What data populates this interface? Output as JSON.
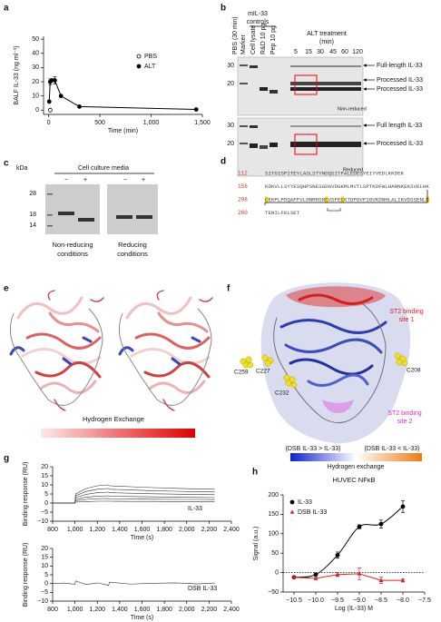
{
  "panel_labels": [
    "a",
    "b",
    "c",
    "d",
    "e",
    "f",
    "g",
    "h"
  ],
  "chart_data": [
    {
      "type": "line",
      "xlabel": "Time (min)",
      "ylabel": "BALF IL-33 (ng ml⁻¹)",
      "xlim": [
        -50,
        1500
      ],
      "ylim": [
        -3,
        52
      ],
      "xticks": [
        0,
        500,
        {
          "value": 1000,
          "label": "1,000"
        },
        {
          "value": 1500,
          "label": "1,500"
        }
      ],
      "yticks": [
        0,
        10,
        20,
        30,
        40,
        50
      ],
      "legend": "upper right",
      "series": [
        {
          "name": "PBS",
          "marker": "open-circle",
          "color": "#000000",
          "line": false,
          "x": [
            15
          ],
          "values": [
            0
          ]
        },
        {
          "name": "ALT",
          "marker": "circle",
          "color": "#000000",
          "line": true,
          "x": [
            5,
            15,
            30,
            60,
            120,
            300,
            1440
          ],
          "values": [
            6,
            20,
            21,
            21,
            10,
            2.5,
            0.5
          ],
          "errors": [
            null,
            2,
            null,
            2.5,
            null,
            null,
            null
          ]
        }
      ]
    },
    {
      "type": "line",
      "xlabel": "Time (s)",
      "ylabel": "Binding response (RU)",
      "annotation": "IL-33",
      "xlim": [
        800,
        2400
      ],
      "ylim": [
        -10,
        20
      ],
      "xticks": [
        800,
        {
          "value": 1000,
          "label": "1,000"
        },
        {
          "value": 1200,
          "label": "1,200"
        },
        {
          "value": 1400,
          "label": "1,400"
        },
        {
          "value": 1600,
          "label": "1,600"
        },
        {
          "value": 1800,
          "label": "1,800"
        },
        {
          "value": 2000,
          "label": "2,000"
        },
        {
          "value": 2200,
          "label": "2,200"
        },
        {
          "value": 2400,
          "label": "2,400"
        }
      ],
      "yticks": [
        {
          "value": -10,
          "label": "−10"
        },
        {
          "value": -5,
          "label": "−5"
        },
        0,
        5,
        10,
        15,
        20
      ],
      "x": [
        800,
        900,
        1000,
        1005,
        1100,
        1200,
        1300,
        1310,
        1500,
        1700,
        1900,
        2100,
        2250
      ],
      "series": [
        {
          "color": "#333333",
          "line": true,
          "values": [
            0,
            0,
            0,
            5,
            8,
            9.5,
            10,
            9.5,
            9,
            8.5,
            8.1,
            7.8,
            7.6
          ]
        },
        {
          "color": "#333333",
          "line": true,
          "values": [
            0,
            0,
            0,
            4,
            6.4,
            7.6,
            8,
            7.6,
            7.2,
            6.8,
            6.5,
            6.2,
            6.1
          ]
        },
        {
          "color": "#333333",
          "line": true,
          "values": [
            0,
            0,
            0,
            3,
            4.8,
            5.7,
            6,
            5.7,
            5.4,
            5.1,
            4.9,
            4.7,
            4.6
          ]
        },
        {
          "color": "#333333",
          "line": true,
          "values": [
            0,
            0,
            0,
            2,
            3.2,
            3.8,
            4,
            3.8,
            3.6,
            3.4,
            3.2,
            3.1,
            3
          ]
        },
        {
          "color": "#333333",
          "line": true,
          "values": [
            0,
            0,
            0,
            1.3,
            2,
            2.4,
            2.5,
            2.4,
            2.3,
            2.1,
            2,
            2,
            1.9
          ]
        },
        {
          "color": "#333333",
          "line": true,
          "values": [
            0,
            0,
            0,
            0.5,
            0.8,
            1,
            1,
            1,
            0.9,
            0.9,
            0.8,
            0.8,
            0.8
          ]
        }
      ]
    },
    {
      "type": "line",
      "xlabel": "Time (s)",
      "ylabel": "Binding response (RU)",
      "annotation": "DSB IL-33",
      "xlim": [
        800,
        2400
      ],
      "ylim": [
        -10,
        20
      ],
      "xticks": [
        800,
        {
          "value": 1000,
          "label": "1,000"
        },
        {
          "value": 1200,
          "label": "1,200"
        },
        {
          "value": 1400,
          "label": "1,400"
        },
        {
          "value": 1600,
          "label": "1,600"
        },
        {
          "value": 1800,
          "label": "1,800"
        },
        {
          "value": 2000,
          "label": "2,000"
        },
        {
          "value": 2200,
          "label": "2,200"
        },
        {
          "value": 2400,
          "label": "2,400"
        }
      ],
      "yticks": [
        {
          "value": -10,
          "label": "−10"
        },
        {
          "value": -5,
          "label": "−5"
        },
        0,
        5,
        10,
        15,
        20
      ],
      "x": [
        800,
        900,
        1000,
        1005,
        1100,
        1200,
        1300,
        1310,
        1500,
        1700,
        1900,
        2100,
        2250
      ],
      "series": [
        {
          "color": "#333333",
          "line": true,
          "values": [
            0,
            0.3,
            -0.4,
            1.5,
            -0.5,
            0.4,
            -1,
            0.8,
            -0.3,
            0.2,
            0.4,
            -0.2,
            0.3
          ]
        }
      ]
    },
    {
      "type": "line",
      "title": "HUVEC NFκB",
      "xlabel": "Log (IL-33) M",
      "ylabel": "Signal (a.u.)",
      "xlim": [
        -10.75,
        -7.5
      ],
      "ylim": [
        -50,
        200
      ],
      "hline": 0,
      "legend": "upper left",
      "xticks": [
        {
          "value": -10.5,
          "label": "−10.5"
        },
        {
          "value": -10,
          "label": "−10.0"
        },
        {
          "value": -9.5,
          "label": "−9.5"
        },
        {
          "value": -9,
          "label": "−9.0"
        },
        {
          "value": -8.5,
          "label": "−8.5"
        },
        {
          "value": -8,
          "label": "−8.0"
        },
        {
          "value": -7.5,
          "label": "−7.5"
        }
      ],
      "yticks": [
        {
          "value": -50,
          "label": "−50"
        },
        0,
        50,
        100,
        150,
        200
      ],
      "series": [
        {
          "name": "IL-33",
          "marker": "circle",
          "color": "#000000",
          "line": true,
          "smooth": true,
          "x": [
            -10.5,
            -10,
            -9.5,
            -9,
            -8.5,
            -8
          ],
          "values": [
            -12,
            -5,
            45,
            118,
            125,
            170
          ],
          "errors": [
            3,
            3,
            8,
            5,
            10,
            15
          ]
        },
        {
          "name": "DSB IL-33",
          "marker": "triangle",
          "color": "#d62728",
          "line": true,
          "x": [
            -10.5,
            -10,
            -9.5,
            -9,
            -8.5,
            -8
          ],
          "values": [
            -12,
            -15,
            -5,
            -3,
            -20,
            -20
          ],
          "errors": [
            3,
            3,
            5,
            15,
            8,
            4
          ]
        }
      ]
    }
  ],
  "gel_b": {
    "controls_header": [
      "mIL-33",
      "controls"
    ],
    "lanes": [
      "Marker",
      "Cell lysate",
      "R&D 10 pg",
      "Pep 10 pg",
      "PBS (30 min)"
    ],
    "treatment_header": [
      "ALT treatment",
      "(min)"
    ],
    "times": [
      5,
      15,
      30,
      45,
      60,
      120
    ],
    "non_reduced": {
      "kda": [
        30,
        20
      ],
      "annotations": [
        "Full-length IL-33",
        "Processed IL-33",
        "Processed IL-33"
      ],
      "condition": "Non-reduced"
    },
    "reduced": {
      "kda": [
        30,
        20
      ],
      "annotations": [
        "Full length IL-33",
        "Processed IL-33"
      ],
      "condition": "Reduced"
    }
  },
  "gel_c": {
    "unit": "kDa",
    "header": "Cell culture media",
    "lanes": [
      "−",
      "+",
      "−",
      "+"
    ],
    "kda": [
      28,
      18,
      14
    ],
    "captions": [
      [
        "Non-reducing",
        "conditions"
      ],
      [
        "Reducing",
        "conditions"
      ]
    ]
  },
  "sequence_d": {
    "lines": [
      {
        "start": 112,
        "sequence": "SITGISPITEYLASLSTYNDQSITFALEDESYEIYVEDLKKDEK"
      },
      {
        "start": 156,
        "sequence": "KDKVLLSYYESQHPSNESGDGVDGKMLMVTLSPTKDFWLHANNKEKSVELHK"
      },
      {
        "start": 208,
        "sequence": "CEKPLPDQAFFVLHNMHSNCVSFECKTDPGVFIGVKDNHLALIKVDSSENLC"
      },
      {
        "start": 260,
        "sequence": "TENILFKLSET"
      }
    ]
  },
  "structure_e": {
    "scale_label": "Hydrogen Exchange"
  },
  "structure_f": {
    "site1": [
      "ST2 binding",
      "site 1"
    ],
    "site2": [
      "ST2 binding",
      "site 2"
    ],
    "cysteines": [
      "C259",
      "C227",
      "C208",
      "C232"
    ],
    "scale_left": "(DSB IL-33 > IL-33)",
    "scale_right": "(DSB IL-33 < IL-33)",
    "scale_label": "Hydrogen exchange"
  }
}
